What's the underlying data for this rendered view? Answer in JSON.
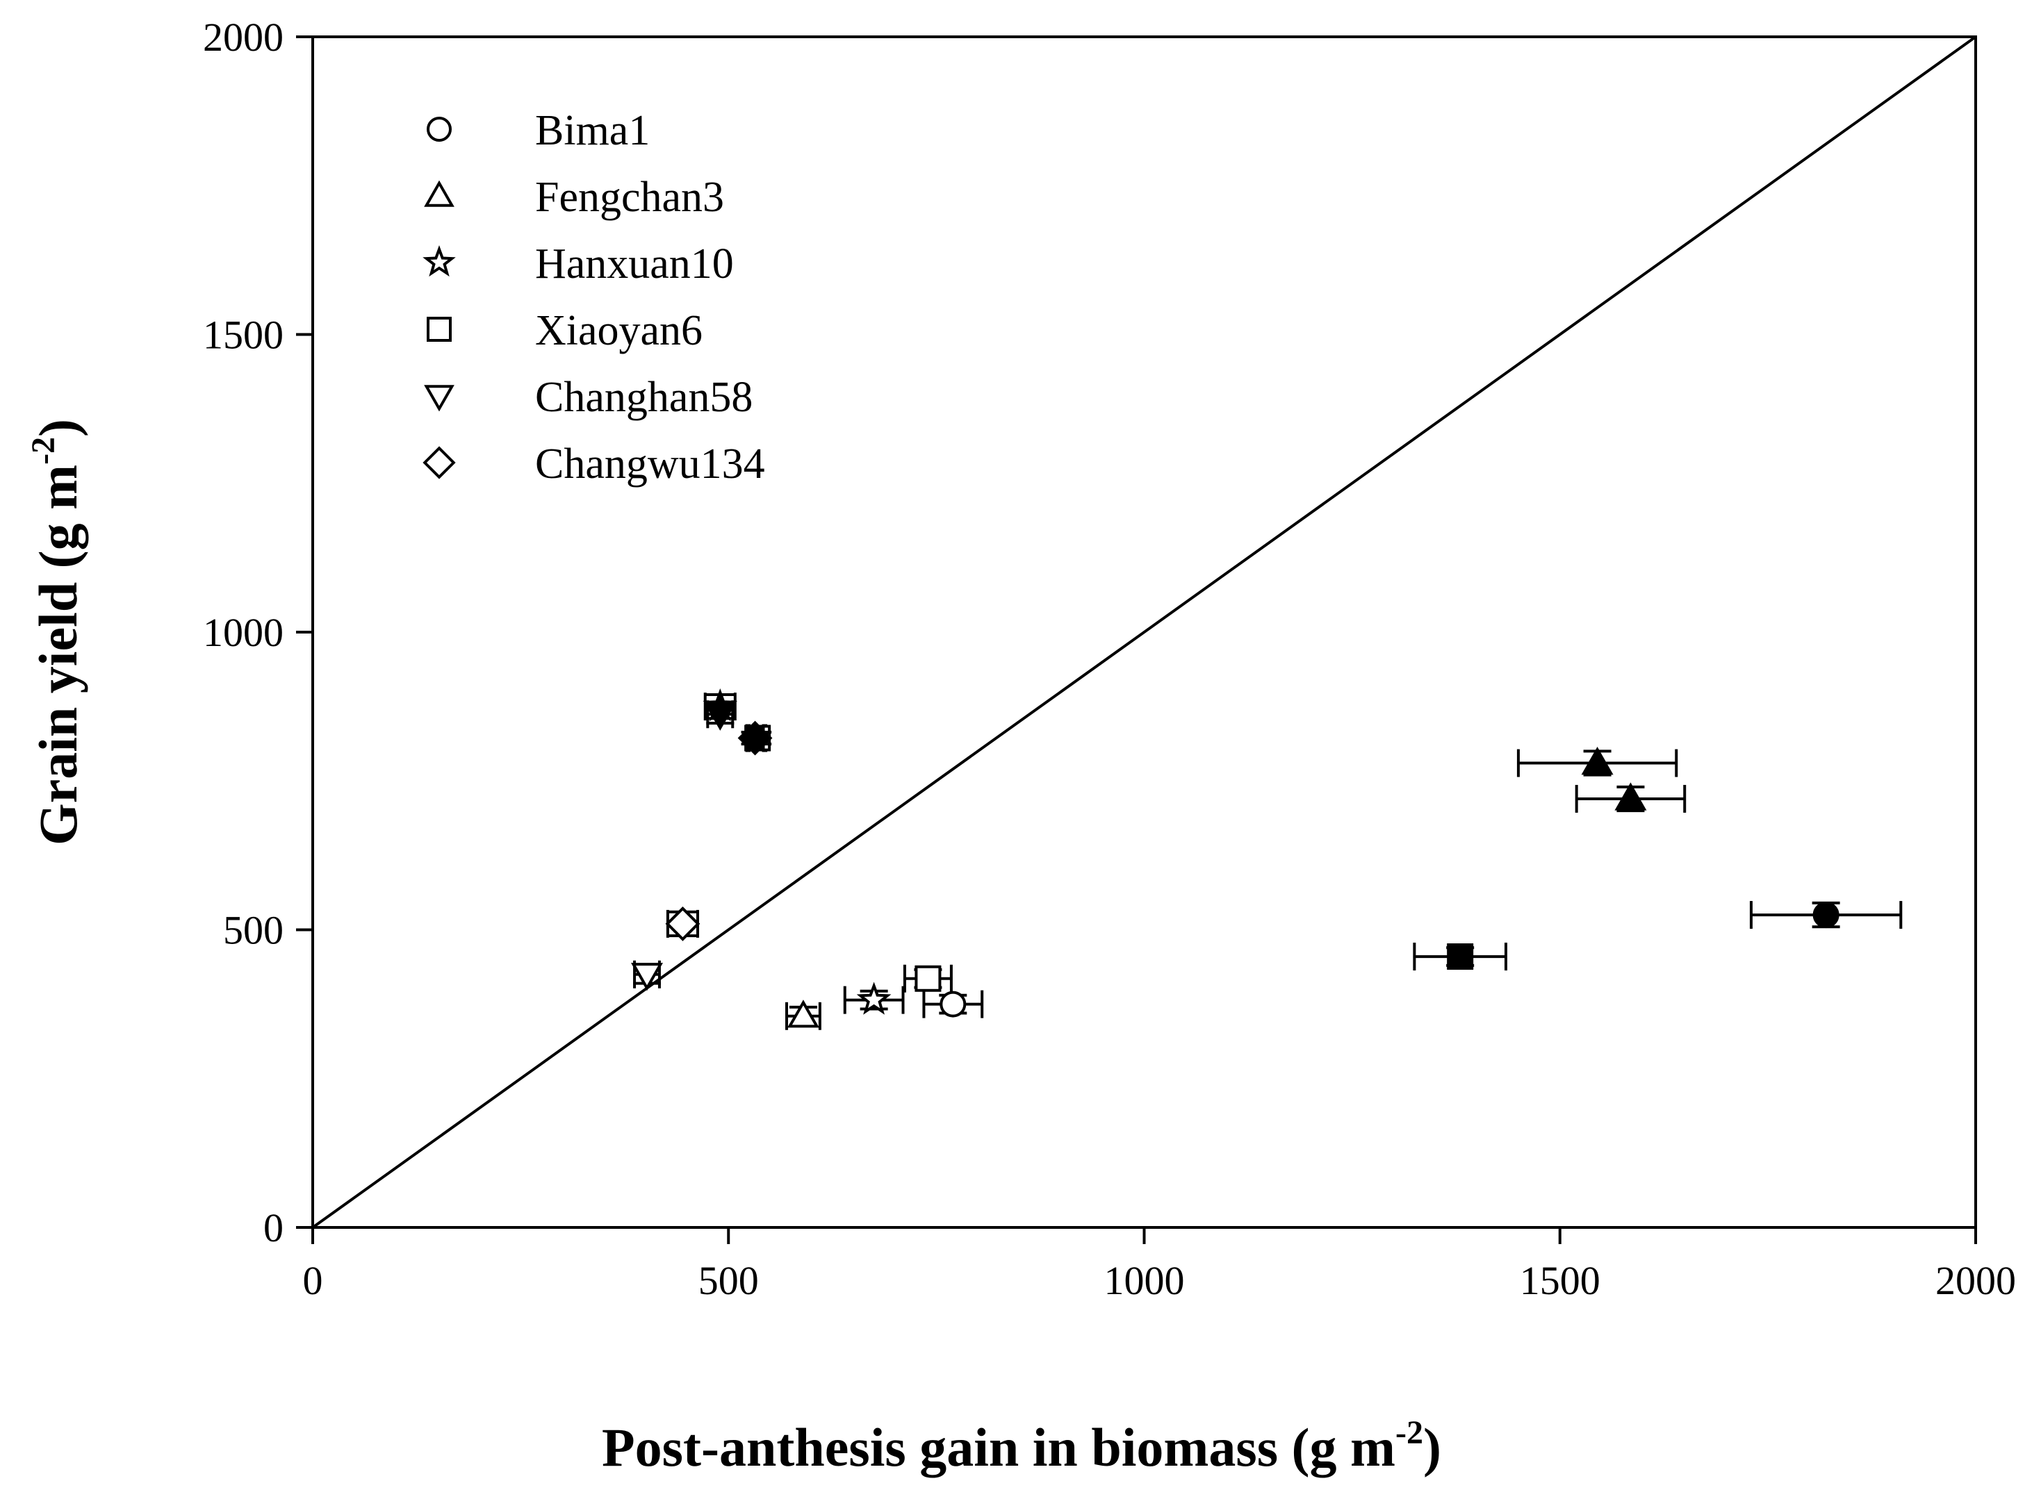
{
  "chart_data": {
    "type": "scatter",
    "title": "",
    "xlabel": {
      "main": "Post-anthesis gain in biomass (g m",
      "sup": "-2",
      "close": ")"
    },
    "ylabel": {
      "main": "Grain yield (g m",
      "sup": "-2",
      "close": ")"
    },
    "xlim": [
      0,
      2000
    ],
    "ylim": [
      0,
      2000
    ],
    "xticks": [
      0,
      500,
      1000,
      1500,
      2000
    ],
    "yticks": [
      0,
      500,
      1000,
      1500,
      2000
    ],
    "xtick_labels": [
      "0",
      "500",
      "1000",
      "1500",
      "2000"
    ],
    "ytick_labels": [
      "0",
      "500",
      "1000",
      "1500",
      "2000"
    ],
    "grid": false,
    "legend_position": "top-left",
    "reference_line": {
      "type": "1:1",
      "from": [
        0,
        0
      ],
      "to": [
        2000,
        2000
      ]
    },
    "series": [
      {
        "name": "Bima1",
        "marker": "circle",
        "points": [
          {
            "x": 770,
            "y": 375,
            "xerr": 35,
            "yerr": 15,
            "filled": false
          },
          {
            "x": 1820,
            "y": 525,
            "xerr": 90,
            "yerr": 20,
            "filled": true
          }
        ]
      },
      {
        "name": "Fengchan3",
        "marker": "triangle-up",
        "points": [
          {
            "x": 590,
            "y": 355,
            "xerr": 20,
            "yerr": 15,
            "filled": false
          },
          {
            "x": 1545,
            "y": 780,
            "xerr": 95,
            "yerr": 20,
            "filled": true
          },
          {
            "x": 1585,
            "y": 720,
            "xerr": 65,
            "yerr": 20,
            "filled": true
          }
        ]
      },
      {
        "name": "Hanxuan10",
        "marker": "star",
        "points": [
          {
            "x": 675,
            "y": 382,
            "xerr": 35,
            "yerr": 15,
            "filled": false
          },
          {
            "x": 490,
            "y": 875,
            "xerr": 18,
            "yerr": 20,
            "filled": true
          }
        ]
      },
      {
        "name": "Xiaoyan6",
        "marker": "square",
        "points": [
          {
            "x": 740,
            "y": 418,
            "xerr": 28,
            "yerr": 15,
            "filled": false
          },
          {
            "x": 1380,
            "y": 455,
            "xerr": 55,
            "yerr": 15,
            "filled": true
          },
          {
            "x": 535,
            "y": 822,
            "xerr": 10,
            "yerr": 10,
            "filled": false
          }
        ]
      },
      {
        "name": "Changhan58",
        "marker": "triangle-down",
        "points": [
          {
            "x": 402,
            "y": 425,
            "xerr": 15,
            "yerr": 15,
            "filled": false
          },
          {
            "x": 490,
            "y": 862,
            "xerr": 15,
            "yerr": 15,
            "filled": true
          }
        ]
      },
      {
        "name": "Changwu134",
        "marker": "diamond",
        "points": [
          {
            "x": 445,
            "y": 510,
            "xerr": 18,
            "yerr": 20,
            "filled": false
          },
          {
            "x": 532,
            "y": 822,
            "xerr": 10,
            "yerr": 10,
            "filled": true
          }
        ]
      }
    ]
  }
}
